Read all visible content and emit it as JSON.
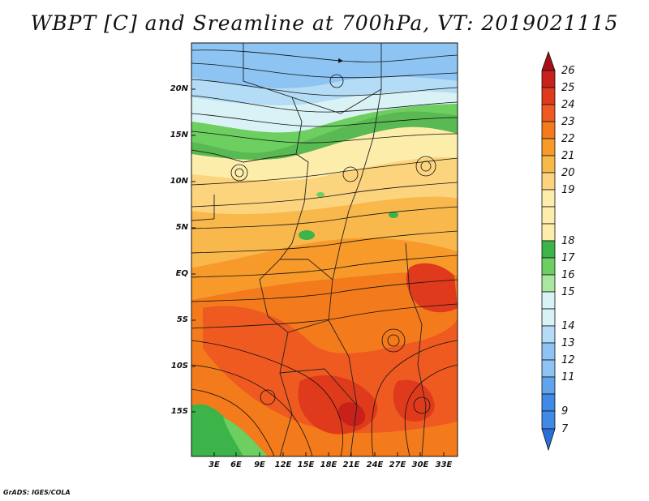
{
  "title": "WBPT [C] and Sreamline at 700hPa, VT: 2019021115",
  "y_ticks": [
    "20N",
    "15N",
    "10N",
    "5N",
    "EQ",
    "5S",
    "10S",
    "15S"
  ],
  "x_ticks": [
    "3E",
    "6E",
    "9E",
    "12E",
    "15E",
    "18E",
    "21E",
    "24E",
    "27E",
    "30E",
    "33E"
  ],
  "colorbar": {
    "labels": [
      "26",
      "25",
      "24",
      "23",
      "22",
      "21",
      "20",
      "19",
      "18",
      "17",
      "16",
      "15",
      "14",
      "13",
      "12",
      "11",
      "9",
      "7"
    ],
    "colors": [
      "#a50f15",
      "#c8201a",
      "#e03a1c",
      "#ee5a20",
      "#f47b1c",
      "#f79a2a",
      "#f9b84c",
      "#fcd47e",
      "#fcedab",
      "#3cb44a",
      "#6ccf60",
      "#a9e6a0",
      "#d8f2f5",
      "#b4dcf6",
      "#8dc4f3",
      "#5fa4ec",
      "#3f8ae6",
      "#2a6fd9"
    ]
  },
  "credit": "GrADS: IGES/COLA"
}
